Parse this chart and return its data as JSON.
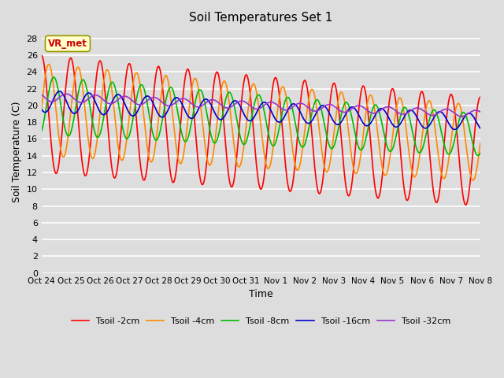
{
  "title": "Soil Temperatures Set 1",
  "xlabel": "Time",
  "ylabel": "Soil Temperature (C)",
  "ylim": [
    0,
    29
  ],
  "yticks": [
    0,
    2,
    4,
    6,
    8,
    10,
    12,
    14,
    16,
    18,
    20,
    22,
    24,
    26,
    28
  ],
  "x_labels": [
    "Oct 24",
    "Oct 25",
    "Oct 26",
    "Oct 27",
    "Oct 28",
    "Oct 29",
    "Oct 30",
    "Oct 31",
    "Nov 1",
    "Nov 2",
    "Nov 3",
    "Nov 4",
    "Nov 5",
    "Nov 6",
    "Nov 7",
    "Nov 8"
  ],
  "annotation_text": "VR_met",
  "annotation_color": "#cc0000",
  "annotation_bg": "#ffffcc",
  "annotation_edge": "#999900",
  "bg_color": "#dddddd",
  "grid_color": "white",
  "series_colors": [
    "#ff0000",
    "#ff8800",
    "#00bb00",
    "#0000cc",
    "#9933cc"
  ],
  "series_labels": [
    "Tsoil -2cm",
    "Tsoil -4cm",
    "Tsoil -8cm",
    "Tsoil -16cm",
    "Tsoil -32cm"
  ],
  "lw": 1.2,
  "n_days": 15,
  "figsize": [
    6.4,
    4.8
  ],
  "dpi": 100
}
